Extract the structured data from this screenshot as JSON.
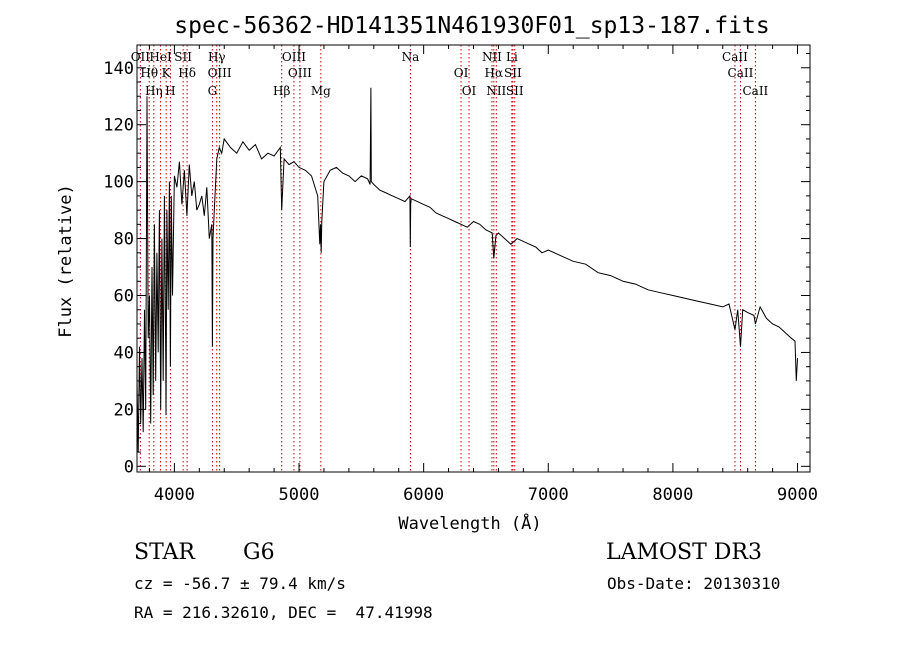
{
  "chart_data": {
    "type": "line",
    "title": "spec-56362-HD141351N461930F01_sp13-187.fits",
    "xlabel": "Wavelength (Å)",
    "ylabel": "Flux (relative)",
    "xlim": [
      3700,
      9100
    ],
    "ylim": [
      -2,
      148
    ],
    "xticks": [
      4000,
      5000,
      6000,
      7000,
      8000,
      9000
    ],
    "yticks": [
      0,
      20,
      40,
      60,
      80,
      100,
      120,
      140
    ],
    "x_minor_step": 200,
    "y_minor_step": 5,
    "series": [
      {
        "name": "flux",
        "x": [
          3700,
          3710,
          3720,
          3730,
          3740,
          3750,
          3760,
          3770,
          3780,
          3790,
          3800,
          3810,
          3820,
          3830,
          3840,
          3850,
          3860,
          3870,
          3880,
          3890,
          3900,
          3910,
          3920,
          3930,
          3933,
          3940,
          3950,
          3960,
          3968,
          3975,
          3985,
          4000,
          4020,
          4040,
          4060,
          4080,
          4100,
          4120,
          4140,
          4160,
          4180,
          4200,
          4220,
          4240,
          4260,
          4280,
          4300,
          4305,
          4310,
          4320,
          4340,
          4360,
          4380,
          4400,
          4450,
          4500,
          4550,
          4600,
          4650,
          4700,
          4750,
          4800,
          4850,
          4861,
          4880,
          4920,
          4960,
          5000,
          5050,
          5100,
          5150,
          5167,
          5172,
          5178,
          5183,
          5200,
          5250,
          5300,
          5350,
          5400,
          5450,
          5500,
          5550,
          5570,
          5577,
          5580,
          5600,
          5650,
          5700,
          5750,
          5800,
          5850,
          5890,
          5893,
          5896,
          5900,
          5950,
          6000,
          6050,
          6100,
          6150,
          6200,
          6250,
          6300,
          6350,
          6400,
          6450,
          6500,
          6550,
          6563,
          6580,
          6600,
          6650,
          6700,
          6750,
          6800,
          6850,
          6900,
          6950,
          7000,
          7100,
          7200,
          7300,
          7400,
          7500,
          7600,
          7700,
          7800,
          7900,
          8000,
          8100,
          8200,
          8300,
          8400,
          8450,
          8498,
          8520,
          8542,
          8560,
          8600,
          8650,
          8662,
          8700,
          8750,
          8800,
          8850,
          8900,
          8950,
          8980,
          8990,
          9000
        ],
        "values": [
          30,
          5,
          42,
          15,
          38,
          12,
          55,
          20,
          130,
          45,
          60,
          15,
          70,
          25,
          85,
          30,
          75,
          40,
          90,
          20,
          80,
          30,
          95,
          40,
          18,
          90,
          55,
          100,
          35,
          95,
          60,
          102,
          98,
          107,
          92,
          104,
          88,
          106,
          95,
          100,
          90,
          92,
          95,
          88,
          98,
          80,
          85,
          42,
          80,
          90,
          108,
          112,
          110,
          115,
          112,
          110,
          114,
          111,
          113,
          108,
          110,
          109,
          112,
          90,
          108,
          106,
          107,
          105,
          104,
          102,
          95,
          78,
          85,
          75,
          86,
          100,
          104,
          105,
          103,
          102,
          100,
          102,
          101,
          99,
          133,
          100,
          99,
          97,
          96,
          95,
          94,
          93,
          95,
          77,
          92,
          94,
          93,
          92,
          91,
          89,
          88,
          87,
          86,
          85,
          84,
          86,
          85,
          83,
          82,
          73,
          81,
          82,
          80,
          78,
          80,
          79,
          78,
          77,
          75,
          76,
          74,
          72,
          71,
          68,
          67,
          65,
          64,
          62,
          61,
          60,
          59,
          58,
          57,
          56,
          57,
          48,
          55,
          42,
          55,
          54,
          53,
          50,
          56,
          52,
          50,
          49,
          47,
          45,
          44,
          30,
          38
        ]
      }
    ],
    "line_markers": [
      {
        "name": "OII",
        "wavelength": 3727
      },
      {
        "name": "Hθ",
        "wavelength": 3798
      },
      {
        "name": "Hη",
        "wavelength": 3835
      },
      {
        "name": "HeI",
        "wavelength": 3889
      },
      {
        "name": "K",
        "wavelength": 3934
      },
      {
        "name": "H",
        "wavelength": 3968
      },
      {
        "name": "SII",
        "wavelength": 4070
      },
      {
        "name": "Hδ",
        "wavelength": 4102
      },
      {
        "name": "G",
        "wavelength": 4305
      },
      {
        "name": "Hγ",
        "wavelength": 4340
      },
      {
        "name": "OIII",
        "wavelength": 4363
      },
      {
        "name": "Hβ",
        "wavelength": 4861
      },
      {
        "name": "OIII",
        "wavelength": 4959
      },
      {
        "name": "OIII",
        "wavelength": 5007
      },
      {
        "name": "Mg",
        "wavelength": 5175
      },
      {
        "name": "Na",
        "wavelength": 5894
      },
      {
        "name": "OI",
        "wavelength": 6300
      },
      {
        "name": "OI",
        "wavelength": 6364
      },
      {
        "name": "NII",
        "wavelength": 6548
      },
      {
        "name": "Hα",
        "wavelength": 6563
      },
      {
        "name": "NII",
        "wavelength": 6583
      },
      {
        "name": "Li",
        "wavelength": 6708
      },
      {
        "name": "SII",
        "wavelength": 6716
      },
      {
        "name": "SII",
        "wavelength": 6731
      },
      {
        "name": "CaII",
        "wavelength": 8498
      },
      {
        "name": "CaII",
        "wavelength": 8542
      },
      {
        "name": "CaII",
        "wavelength": 8662
      }
    ],
    "grid": false,
    "line_color": "#000000",
    "marker_color": "#cc0000"
  },
  "info": {
    "object_class": "STAR",
    "subclass": "G6",
    "survey": "LAMOST DR3",
    "redshift": "cz = -56.7 ± 79.4 km/s",
    "obs_date": "Obs-Date: 20130310",
    "coords": "RA = 216.32610, DEC =  47.41998"
  }
}
